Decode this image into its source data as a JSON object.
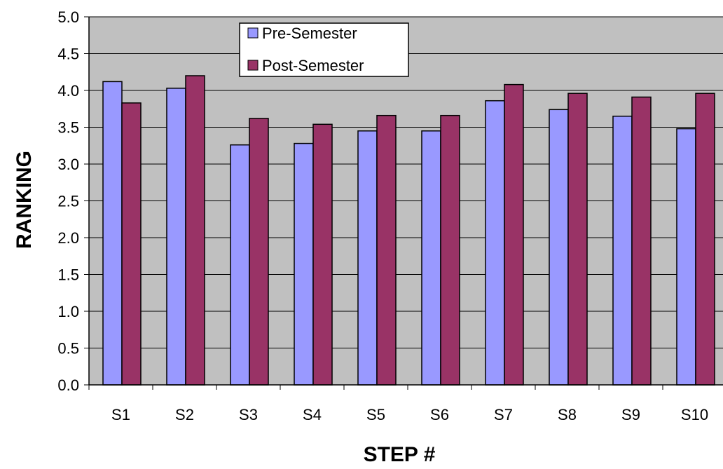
{
  "chart_data": {
    "type": "bar",
    "title": "",
    "xlabel": "STEP #",
    "ylabel": "RANKING",
    "ylim": [
      0,
      5
    ],
    "y_ticks": [
      "0.0",
      "0.5",
      "1.0",
      "1.5",
      "2.0",
      "2.5",
      "3.0",
      "3.5",
      "4.0",
      "4.5",
      "5.0"
    ],
    "categories": [
      "S1",
      "S2",
      "S3",
      "S4",
      "S5",
      "S6",
      "S7",
      "S8",
      "S9",
      "S10"
    ],
    "series": [
      {
        "name": "Pre-Semester",
        "color": "#9999ff",
        "values": [
          4.12,
          4.03,
          3.26,
          3.28,
          3.45,
          3.45,
          3.86,
          3.74,
          3.65,
          3.48
        ]
      },
      {
        "name": "Post-Semester",
        "color": "#993366",
        "values": [
          3.83,
          4.2,
          3.62,
          3.54,
          3.66,
          3.66,
          4.08,
          3.96,
          3.91,
          3.96
        ]
      }
    ],
    "grid": true,
    "plot_background": "#c0c0c0",
    "legend_position": "top-center"
  }
}
